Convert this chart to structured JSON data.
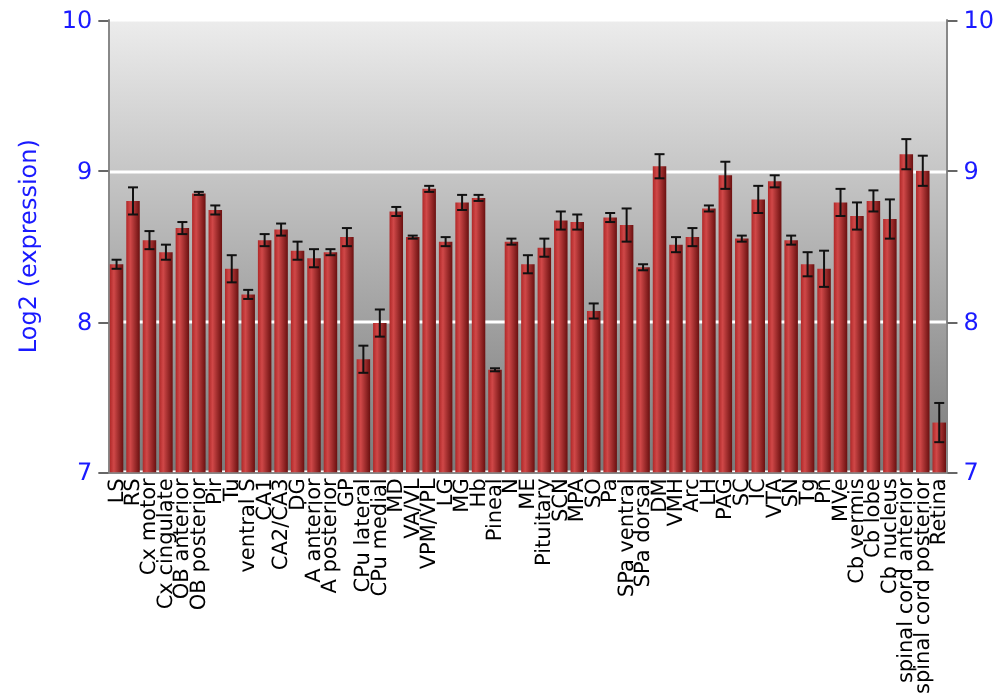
{
  "chart_data": {
    "type": "bar",
    "ylabel": "Log2 (expression)",
    "categories": [
      "LS",
      "RS",
      "Cx motor",
      "Cx cingulate",
      "OB anterior",
      "OB posterior",
      "Pir",
      "Tu",
      "ventral S",
      "CA1",
      "CA2/CA3",
      "DG",
      "A anterior",
      "A posterior",
      "GP",
      "CPu lateral",
      "CPu medial",
      "MD",
      "VA/VL",
      "VPM/VPL",
      "LG",
      "MG",
      "Hb",
      "Pineal",
      "N",
      "ME",
      "Pituitary",
      "SCN",
      "MPA",
      "SO",
      "Pa",
      "SPa ventral",
      "SPa dorsal",
      "DM",
      "VMH",
      "Arc",
      "LH",
      "PAG",
      "SC",
      "IC",
      "VTA",
      "SN",
      "Tg",
      "Pn",
      "MVe",
      "Cb vermis",
      "Cb lobe",
      "Cb nucleus",
      "spinal cord anterior",
      "spinal cord posterior",
      "Retina"
    ],
    "values": [
      8.38,
      8.8,
      8.54,
      8.46,
      8.62,
      8.85,
      8.74,
      8.35,
      8.18,
      8.54,
      8.61,
      8.47,
      8.42,
      8.46,
      8.56,
      7.75,
      7.99,
      8.73,
      8.56,
      8.88,
      8.53,
      8.79,
      8.82,
      7.68,
      8.53,
      8.38,
      8.49,
      8.67,
      8.66,
      8.07,
      8.69,
      8.64,
      8.36,
      9.03,
      8.51,
      8.56,
      8.75,
      8.97,
      8.55,
      8.81,
      8.93,
      8.54,
      8.38,
      8.35,
      8.79,
      8.7,
      8.8,
      8.68,
      9.11,
      9.0,
      7.33
    ],
    "errors": [
      0.03,
      0.09,
      0.06,
      0.05,
      0.04,
      0.01,
      0.03,
      0.09,
      0.03,
      0.04,
      0.04,
      0.06,
      0.06,
      0.02,
      0.06,
      0.09,
      0.09,
      0.03,
      0.01,
      0.02,
      0.03,
      0.05,
      0.02,
      0.01,
      0.02,
      0.06,
      0.06,
      0.06,
      0.05,
      0.05,
      0.03,
      0.11,
      0.02,
      0.08,
      0.05,
      0.06,
      0.02,
      0.09,
      0.02,
      0.09,
      0.04,
      0.03,
      0.08,
      0.12,
      0.09,
      0.09,
      0.07,
      0.13,
      0.1,
      0.1,
      0.13
    ],
    "color": "#b02828",
    "ylim": [
      7,
      10
    ],
    "yticks": [
      7,
      8,
      9,
      10
    ],
    "y2lim": [
      7,
      10
    ],
    "y2ticks": [
      7,
      8,
      9,
      10
    ],
    "grid": "y"
  }
}
